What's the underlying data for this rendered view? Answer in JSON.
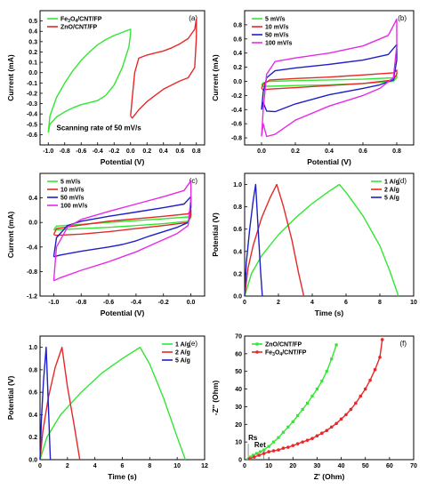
{
  "chart_data": [
    {
      "id": "a",
      "type": "line",
      "panel_label": "(a)",
      "xlabel": "Potential (V)",
      "ylabel": "Current (mA)",
      "xlim": [
        -1.1,
        0.9
      ],
      "ylim": [
        -0.7,
        0.6
      ],
      "xticks": [
        -1.0,
        -0.8,
        -0.6,
        -0.4,
        -0.2,
        0.0,
        0.2,
        0.4,
        0.6,
        0.8
      ],
      "xtick_labels": [
        "-1.0",
        "-0.8",
        "-0.6",
        "-0.4",
        "-0.2",
        "0.0",
        "0.2",
        "0.4",
        "0.6",
        "0.8"
      ],
      "yticks": [
        -0.6,
        -0.5,
        -0.4,
        -0.3,
        -0.2,
        -0.1,
        0.0,
        0.1,
        0.2,
        0.3,
        0.4,
        0.5
      ],
      "ytick_labels": [
        "-0.6",
        "-0.5",
        "-0.4",
        "-0.3",
        "-0.2",
        "-0.1",
        "0.0",
        "0.1",
        "0.2",
        "0.3",
        "0.4",
        "0.5"
      ],
      "legend": "top-left",
      "annotations": [
        {
          "text": "Scanning rate of 50 mV/s",
          "x": -0.9,
          "y": -0.56
        }
      ],
      "series": [
        {
          "name": "Fe<sub>3</sub>O<sub>4</sub>/CNT/FP",
          "name_parts": [
            "Fe",
            "3",
            "O",
            "4",
            "/CNT/FP"
          ],
          "color": "#33e633",
          "x": [
            -1.0,
            -0.98,
            -0.9,
            -0.8,
            -0.7,
            -0.6,
            -0.5,
            -0.4,
            -0.3,
            -0.2,
            -0.1,
            0.0,
            0.0,
            -0.02,
            -0.1,
            -0.2,
            -0.3,
            -0.4,
            -0.5,
            -0.6,
            -0.7,
            -0.8,
            -0.9,
            -0.98,
            -1.0
          ],
          "y": [
            -0.58,
            -0.42,
            -0.24,
            -0.1,
            0.02,
            0.12,
            0.2,
            0.27,
            0.32,
            0.36,
            0.39,
            0.42,
            0.38,
            0.25,
            0.05,
            -0.12,
            -0.22,
            -0.27,
            -0.29,
            -0.31,
            -0.34,
            -0.38,
            -0.43,
            -0.5,
            -0.58
          ]
        },
        {
          "name": "ZnO/CNT/FP",
          "color": "#e62828",
          "x": [
            0.0,
            0.02,
            0.05,
            0.1,
            0.2,
            0.3,
            0.4,
            0.5,
            0.6,
            0.7,
            0.78,
            0.8,
            0.8,
            0.78,
            0.7,
            0.6,
            0.5,
            0.4,
            0.3,
            0.2,
            0.1,
            0.05,
            0.02,
            0.0
          ],
          "y": [
            -0.42,
            -0.25,
            0.0,
            0.14,
            0.17,
            0.19,
            0.21,
            0.24,
            0.28,
            0.33,
            0.42,
            0.52,
            0.35,
            0.05,
            -0.05,
            -0.08,
            -0.12,
            -0.16,
            -0.22,
            -0.28,
            -0.36,
            -0.41,
            -0.44,
            -0.42
          ]
        }
      ]
    },
    {
      "id": "b",
      "type": "line",
      "panel_label": "(b)",
      "xlabel": "Potential (V)",
      "ylabel": "Current (mA)",
      "xlim": [
        -0.1,
        0.9
      ],
      "ylim": [
        -0.9,
        1.0
      ],
      "xticks": [
        0.0,
        0.2,
        0.4,
        0.6,
        0.8
      ],
      "xtick_labels": [
        "0.0",
        "0.2",
        "0.4",
        "0.6",
        "0.8"
      ],
      "yticks": [
        -0.8,
        -0.6,
        -0.4,
        -0.2,
        0.0,
        0.2,
        0.4,
        0.6,
        0.8
      ],
      "ytick_labels": [
        "-0.8",
        "-0.6",
        "-0.4",
        "-0.2",
        "0.0",
        "0.2",
        "0.4",
        "0.6",
        "0.8"
      ],
      "legend": "top-left",
      "series": [
        {
          "name": "5 mV/s",
          "color": "#33e633",
          "x": [
            0.0,
            0.01,
            0.05,
            0.2,
            0.4,
            0.6,
            0.78,
            0.8,
            0.8,
            0.78,
            0.6,
            0.4,
            0.2,
            0.05,
            0.01,
            0.0
          ],
          "y": [
            -0.05,
            -0.02,
            0.0,
            0.01,
            0.02,
            0.03,
            0.05,
            0.08,
            0.05,
            0.0,
            -0.03,
            -0.05,
            -0.06,
            -0.07,
            -0.07,
            -0.05
          ]
        },
        {
          "name": "10 mV/s",
          "color": "#e62828",
          "x": [
            0.0,
            0.01,
            0.05,
            0.2,
            0.4,
            0.6,
            0.78,
            0.8,
            0.8,
            0.78,
            0.6,
            0.4,
            0.2,
            0.05,
            0.01,
            0.0
          ],
          "y": [
            -0.1,
            -0.04,
            0.02,
            0.04,
            0.06,
            0.09,
            0.12,
            0.16,
            0.1,
            0.02,
            -0.03,
            -0.06,
            -0.09,
            -0.11,
            -0.12,
            -0.1
          ]
        },
        {
          "name": "50 mV/s",
          "color": "#1f1fc8",
          "x": [
            0.0,
            0.01,
            0.03,
            0.08,
            0.2,
            0.4,
            0.6,
            0.75,
            0.8,
            0.8,
            0.78,
            0.7,
            0.6,
            0.4,
            0.2,
            0.08,
            0.03,
            0.01,
            0.0
          ],
          "y": [
            -0.4,
            -0.15,
            0.05,
            0.15,
            0.19,
            0.24,
            0.3,
            0.38,
            0.52,
            0.3,
            0.02,
            -0.05,
            -0.1,
            -0.19,
            -0.32,
            -0.43,
            -0.42,
            -0.3,
            -0.4
          ]
        },
        {
          "name": "100 mV/s",
          "color": "#e62be6",
          "x": [
            0.0,
            0.01,
            0.03,
            0.08,
            0.2,
            0.4,
            0.6,
            0.75,
            0.8,
            0.8,
            0.78,
            0.7,
            0.6,
            0.4,
            0.2,
            0.08,
            0.03,
            0.01,
            0.0
          ],
          "y": [
            -0.78,
            -0.4,
            0.1,
            0.28,
            0.33,
            0.4,
            0.5,
            0.65,
            0.88,
            0.5,
            0.05,
            -0.1,
            -0.2,
            -0.35,
            -0.55,
            -0.75,
            -0.78,
            -0.6,
            -0.78
          ]
        }
      ]
    },
    {
      "id": "c",
      "type": "line",
      "panel_label": "(c)",
      "xlabel": "Potential (V)",
      "ylabel": "Current (mA)",
      "xlim": [
        -1.1,
        0.1
      ],
      "ylim": [
        -1.2,
        0.8
      ],
      "xticks": [
        -1.0,
        -0.8,
        -0.6,
        -0.4,
        -0.2,
        0.0
      ],
      "xtick_labels": [
        "-1.0",
        "-0.8",
        "-0.6",
        "-0.4",
        "-0.2",
        "0.0"
      ],
      "yticks": [
        -1.2,
        -0.8,
        -0.4,
        0.0,
        0.4
      ],
      "ytick_labels": [
        "-1.2",
        "-0.8",
        "-0.4",
        "0.0",
        "0.4"
      ],
      "legend": "top-left",
      "series": [
        {
          "name": "5 mV/s",
          "color": "#33e633",
          "x": [
            -1.0,
            -0.98,
            -0.8,
            -0.6,
            -0.4,
            -0.2,
            -0.02,
            0.0,
            0.0,
            -0.02,
            -0.2,
            -0.4,
            -0.6,
            -0.8,
            -0.98,
            -1.0
          ],
          "y": [
            -0.12,
            -0.06,
            -0.03,
            0.0,
            0.03,
            0.06,
            0.09,
            0.12,
            0.08,
            0.02,
            -0.02,
            -0.05,
            -0.08,
            -0.1,
            -0.12,
            -0.12
          ]
        },
        {
          "name": "10 mV/s",
          "color": "#e62828",
          "x": [
            -1.0,
            -0.98,
            -0.8,
            -0.6,
            -0.4,
            -0.2,
            -0.02,
            0.0,
            0.0,
            -0.02,
            -0.2,
            -0.4,
            -0.6,
            -0.8,
            -0.98,
            -1.0
          ],
          "y": [
            -0.2,
            -0.1,
            -0.04,
            0.02,
            0.06,
            0.1,
            0.14,
            0.2,
            0.12,
            0.0,
            -0.05,
            -0.1,
            -0.15,
            -0.19,
            -0.21,
            -0.2
          ]
        },
        {
          "name": "50 mV/s",
          "color": "#1f1fc8",
          "x": [
            -1.0,
            -0.98,
            -0.9,
            -0.8,
            -0.6,
            -0.4,
            -0.2,
            -0.05,
            0.0,
            0.0,
            -0.02,
            -0.1,
            -0.2,
            -0.3,
            -0.4,
            -0.5,
            -0.6,
            -0.8,
            -0.95,
            -1.0
          ],
          "y": [
            -0.56,
            -0.25,
            -0.05,
            0.02,
            0.1,
            0.17,
            0.24,
            0.3,
            0.42,
            0.25,
            0.0,
            -0.08,
            -0.15,
            -0.22,
            -0.3,
            -0.36,
            -0.4,
            -0.47,
            -0.53,
            -0.56
          ]
        },
        {
          "name": "100 mV/s",
          "color": "#e62be6",
          "x": [
            -1.0,
            -0.98,
            -0.9,
            -0.8,
            -0.6,
            -0.4,
            -0.2,
            -0.05,
            0.0,
            0.0,
            -0.02,
            -0.1,
            -0.2,
            -0.3,
            -0.4,
            -0.5,
            -0.6,
            -0.8,
            -0.95,
            -1.0
          ],
          "y": [
            -0.95,
            -0.4,
            -0.08,
            0.05,
            0.18,
            0.3,
            0.42,
            0.52,
            0.68,
            0.4,
            -0.05,
            -0.18,
            -0.28,
            -0.38,
            -0.48,
            -0.56,
            -0.64,
            -0.78,
            -0.9,
            -0.95
          ]
        }
      ]
    },
    {
      "id": "d",
      "type": "line",
      "panel_label": "(d)",
      "xlabel": "Time (s)",
      "ylabel": "Potential (V)",
      "xlim": [
        0,
        10
      ],
      "ylim": [
        0,
        1.1
      ],
      "xticks": [
        0,
        2,
        4,
        6,
        8,
        10
      ],
      "xtick_labels": [
        "0",
        "2",
        "4",
        "6",
        "8",
        "10"
      ],
      "yticks": [
        0.0,
        0.2,
        0.4,
        0.6,
        0.8,
        1.0
      ],
      "ytick_labels": [
        "0.0",
        "0.2",
        "0.4",
        "0.6",
        "0.8",
        "1.0"
      ],
      "legend": "top-right",
      "series": [
        {
          "name": "1 A/g",
          "color": "#33e633",
          "x": [
            0,
            0.4,
            1.0,
            2.0,
            3.0,
            4.0,
            5.0,
            5.6,
            6.0,
            7.0,
            8.0,
            8.6,
            9.1
          ],
          "y": [
            0,
            0.2,
            0.36,
            0.55,
            0.7,
            0.83,
            0.94,
            1.0,
            0.93,
            0.72,
            0.45,
            0.22,
            0
          ]
        },
        {
          "name": "2 A/g",
          "color": "#e62828",
          "x": [
            0,
            0.2,
            0.5,
            1.0,
            1.5,
            1.9,
            2.3,
            2.8,
            3.2,
            3.5
          ],
          "y": [
            0,
            0.25,
            0.45,
            0.7,
            0.88,
            1.0,
            0.8,
            0.5,
            0.2,
            0
          ]
        },
        {
          "name": "5 A/g",
          "color": "#1f1fc8",
          "x": [
            0,
            0.1,
            0.3,
            0.5,
            0.65,
            0.8,
            0.95,
            1.05
          ],
          "y": [
            0,
            0.3,
            0.6,
            0.85,
            1.0,
            0.6,
            0.2,
            0
          ]
        }
      ]
    },
    {
      "id": "e",
      "type": "line",
      "panel_label": "(e)",
      "xlabel": "Time (s)",
      "ylabel": "Potential (V)",
      "xlim": [
        0,
        12
      ],
      "ylim": [
        0,
        1.1
      ],
      "xticks": [
        0,
        2,
        4,
        6,
        8,
        10,
        12
      ],
      "xtick_labels": [
        "0",
        "2",
        "4",
        "6",
        "8",
        "10",
        "12"
      ],
      "yticks": [
        0.0,
        0.2,
        0.4,
        0.6,
        0.8,
        1.0
      ],
      "ytick_labels": [
        "0.0",
        "0.2",
        "0.4",
        "0.6",
        "0.8",
        "1.0"
      ],
      "legend": "top-right",
      "series": [
        {
          "name": "1 A/g",
          "color": "#33e633",
          "x": [
            0,
            0.5,
            1.5,
            3.0,
            4.5,
            6.0,
            7.3,
            8.0,
            9.0,
            10.0,
            10.6
          ],
          "y": [
            0,
            0.2,
            0.4,
            0.6,
            0.77,
            0.9,
            1.0,
            0.85,
            0.55,
            0.2,
            0
          ]
        },
        {
          "name": "2 A/g",
          "color": "#e62828",
          "x": [
            0,
            0.2,
            0.6,
            1.1,
            1.6,
            2.0,
            2.5,
            2.9
          ],
          "y": [
            0,
            0.25,
            0.55,
            0.82,
            1.0,
            0.65,
            0.3,
            0
          ]
        },
        {
          "name": "5 A/g",
          "color": "#1f1fc8",
          "x": [
            0,
            0.1,
            0.25,
            0.45,
            0.6,
            0.75
          ],
          "y": [
            0,
            0.35,
            0.7,
            1.0,
            0.5,
            0
          ]
        }
      ]
    },
    {
      "id": "f",
      "type": "scatter",
      "panel_label": "(f)",
      "xlabel": "Z' (Ohm)",
      "ylabel": "-Z'' (Ohm)",
      "xlim": [
        0,
        70
      ],
      "ylim": [
        0,
        70
      ],
      "xticks": [
        0,
        10,
        20,
        30,
        40,
        50,
        60,
        70
      ],
      "xtick_labels": [
        "0",
        "10",
        "20",
        "30",
        "40",
        "50",
        "60",
        "70"
      ],
      "yticks": [
        0,
        10,
        20,
        30,
        40,
        50,
        60,
        70
      ],
      "ytick_labels": [
        "0",
        "10",
        "20",
        "30",
        "40",
        "50",
        "60",
        "70"
      ],
      "legend": "top-left",
      "annotations": [
        {
          "text": "Rs",
          "x": 1.5,
          "y": 11
        },
        {
          "text": "Ret",
          "x": 4,
          "y": 7
        }
      ],
      "series": [
        {
          "name": "ZnO/CNT/FP",
          "color": "#33e633",
          "marker": "square",
          "x": [
            1.5,
            2.5,
            3.5,
            5,
            6.5,
            8,
            10,
            12,
            14,
            16,
            18,
            20,
            22,
            24,
            26,
            28,
            30,
            32,
            34,
            36,
            38
          ],
          "y": [
            0.3,
            1.5,
            2.5,
            3.5,
            4.5,
            5.5,
            7.5,
            10,
            12.5,
            15.5,
            18.5,
            21.5,
            25,
            28.5,
            32,
            36,
            40,
            44.5,
            50,
            57,
            65
          ]
        },
        {
          "name": "Fe<sub>3</sub>O<sub>4</sub>/CNT/FP",
          "name_parts": [
            "Fe",
            "3",
            "O",
            "4",
            "/CNT/FP"
          ],
          "color": "#e62828",
          "marker": "circle",
          "x": [
            2,
            4,
            6,
            8,
            10,
            12,
            14,
            16,
            18,
            20,
            22,
            24,
            26,
            28,
            30,
            32,
            34,
            36,
            38,
            40,
            42,
            44,
            46,
            48,
            50,
            52,
            54,
            56,
            57
          ],
          "y": [
            0.5,
            1.5,
            2.5,
            3.5,
            4.5,
            5,
            5.5,
            6.5,
            7,
            8,
            9,
            10,
            11,
            12,
            13.5,
            15,
            16.5,
            18.5,
            20.5,
            23,
            25.5,
            28.5,
            32,
            36,
            40,
            45,
            51,
            58,
            68
          ]
        }
      ]
    }
  ]
}
